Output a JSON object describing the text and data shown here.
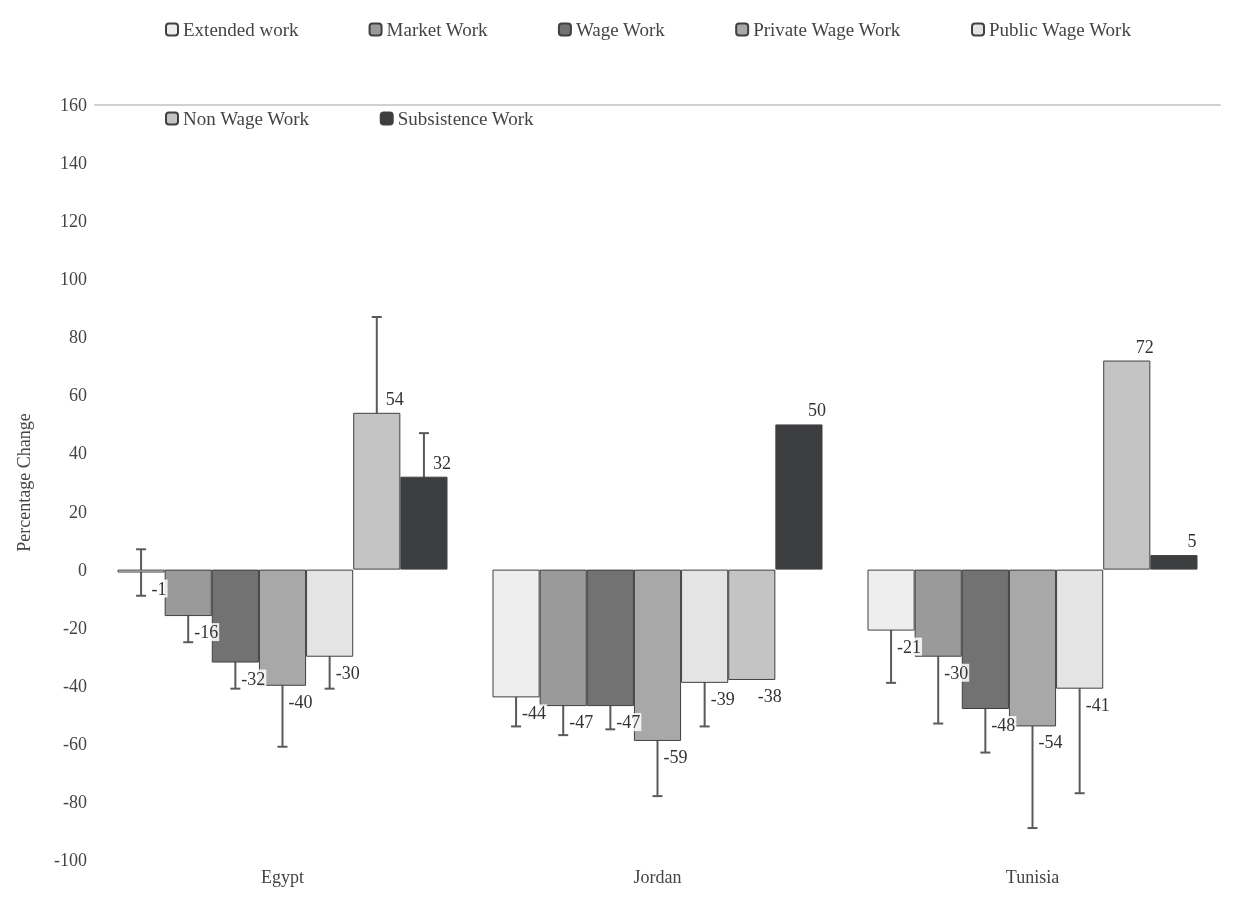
{
  "chart_data": {
    "type": "bar",
    "ylabel": "Percentage Change",
    "categories": [
      "Egypt",
      "Jordan",
      "Tunisia"
    ],
    "series": [
      {
        "name": "Extended work",
        "color": "#eeeeee",
        "values": [
          -1,
          -44,
          -21
        ],
        "errors": [
          8,
          10,
          18
        ]
      },
      {
        "name": "Market Work",
        "color": "#9a9a9a",
        "values": [
          -16,
          -47,
          -30
        ],
        "errors": [
          9,
          10,
          23
        ]
      },
      {
        "name": "Wage Work",
        "color": "#727272",
        "values": [
          -32,
          -47,
          -48
        ],
        "errors": [
          9,
          8,
          15
        ]
      },
      {
        "name": "Private Wage Work",
        "color": "#a8a8a8",
        "values": [
          -40,
          -59,
          -54
        ],
        "errors": [
          21,
          19,
          35
        ]
      },
      {
        "name": "Public Wage Work",
        "color": "#e4e4e4",
        "values": [
          -30,
          -39,
          -41
        ],
        "errors": [
          11,
          15,
          36
        ]
      },
      {
        "name": "Non Wage Work",
        "color": "#c4c4c4",
        "values": [
          54,
          -38,
          72
        ],
        "errors": [
          33,
          null,
          null
        ]
      },
      {
        "name": "Subsistence Work",
        "color": "#3d3e40",
        "values": [
          32,
          50,
          5
        ],
        "errors": [
          15,
          null,
          null
        ]
      }
    ],
    "ylim": [
      -100,
      160
    ],
    "yticks": [
      -100,
      -80,
      -60,
      -40,
      -20,
      0,
      20,
      40,
      60,
      80,
      100,
      120,
      140,
      160
    ],
    "data_labels": true,
    "grid": false,
    "legend": "top"
  }
}
